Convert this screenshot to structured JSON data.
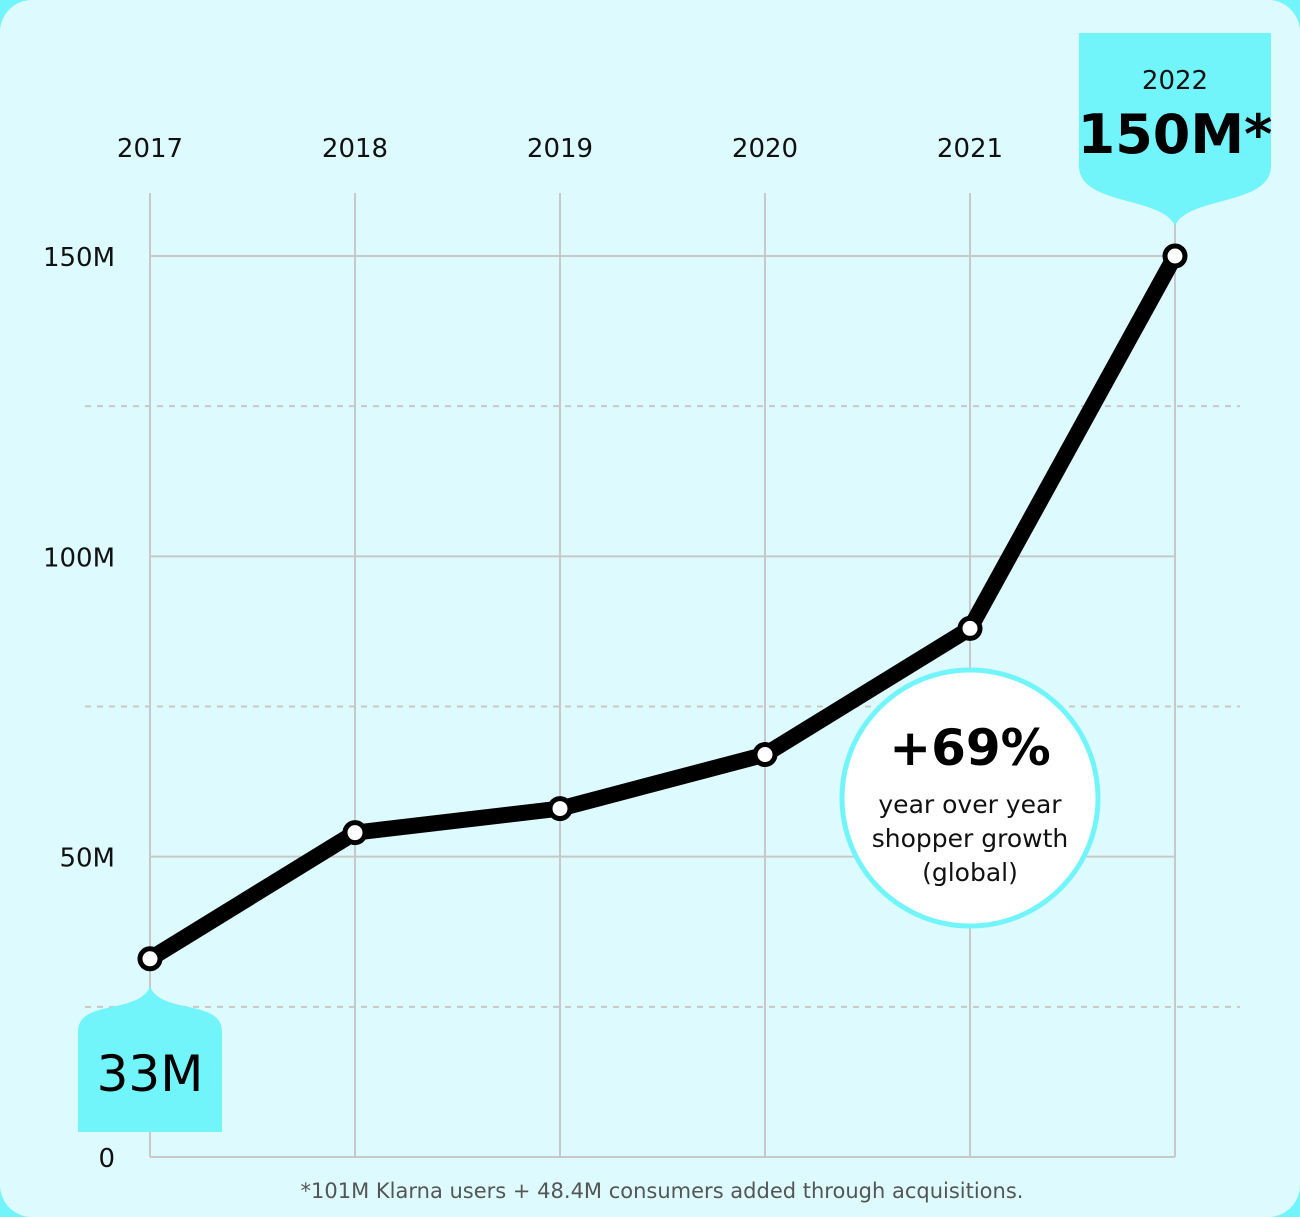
{
  "chart_data": {
    "type": "line",
    "x": [
      "2017",
      "2018",
      "2019",
      "2020",
      "2021",
      "2022"
    ],
    "values": [
      33,
      54,
      58,
      67,
      88,
      150
    ],
    "y_tick_labels": [
      "0",
      "50M",
      "100M",
      "150M"
    ],
    "y_ticks": [
      0,
      50,
      100,
      150
    ],
    "ylim": [
      0,
      165
    ],
    "grid": true,
    "annotations": {
      "start_label": "33M",
      "end_year": "2022",
      "end_label": "150M*",
      "growth_value": "+69%",
      "growth_text": [
        "year over year",
        "shopper growth",
        "(global)"
      ]
    },
    "footnote": "*101M Klarna users + 48.4M consumers added through acquisitions."
  },
  "colors": {
    "page_bg": "#72f4fb",
    "card_bg": "#ddfbfe",
    "accent": "#72f4fb",
    "line": "#000000",
    "grid": "#c8c8c8"
  }
}
